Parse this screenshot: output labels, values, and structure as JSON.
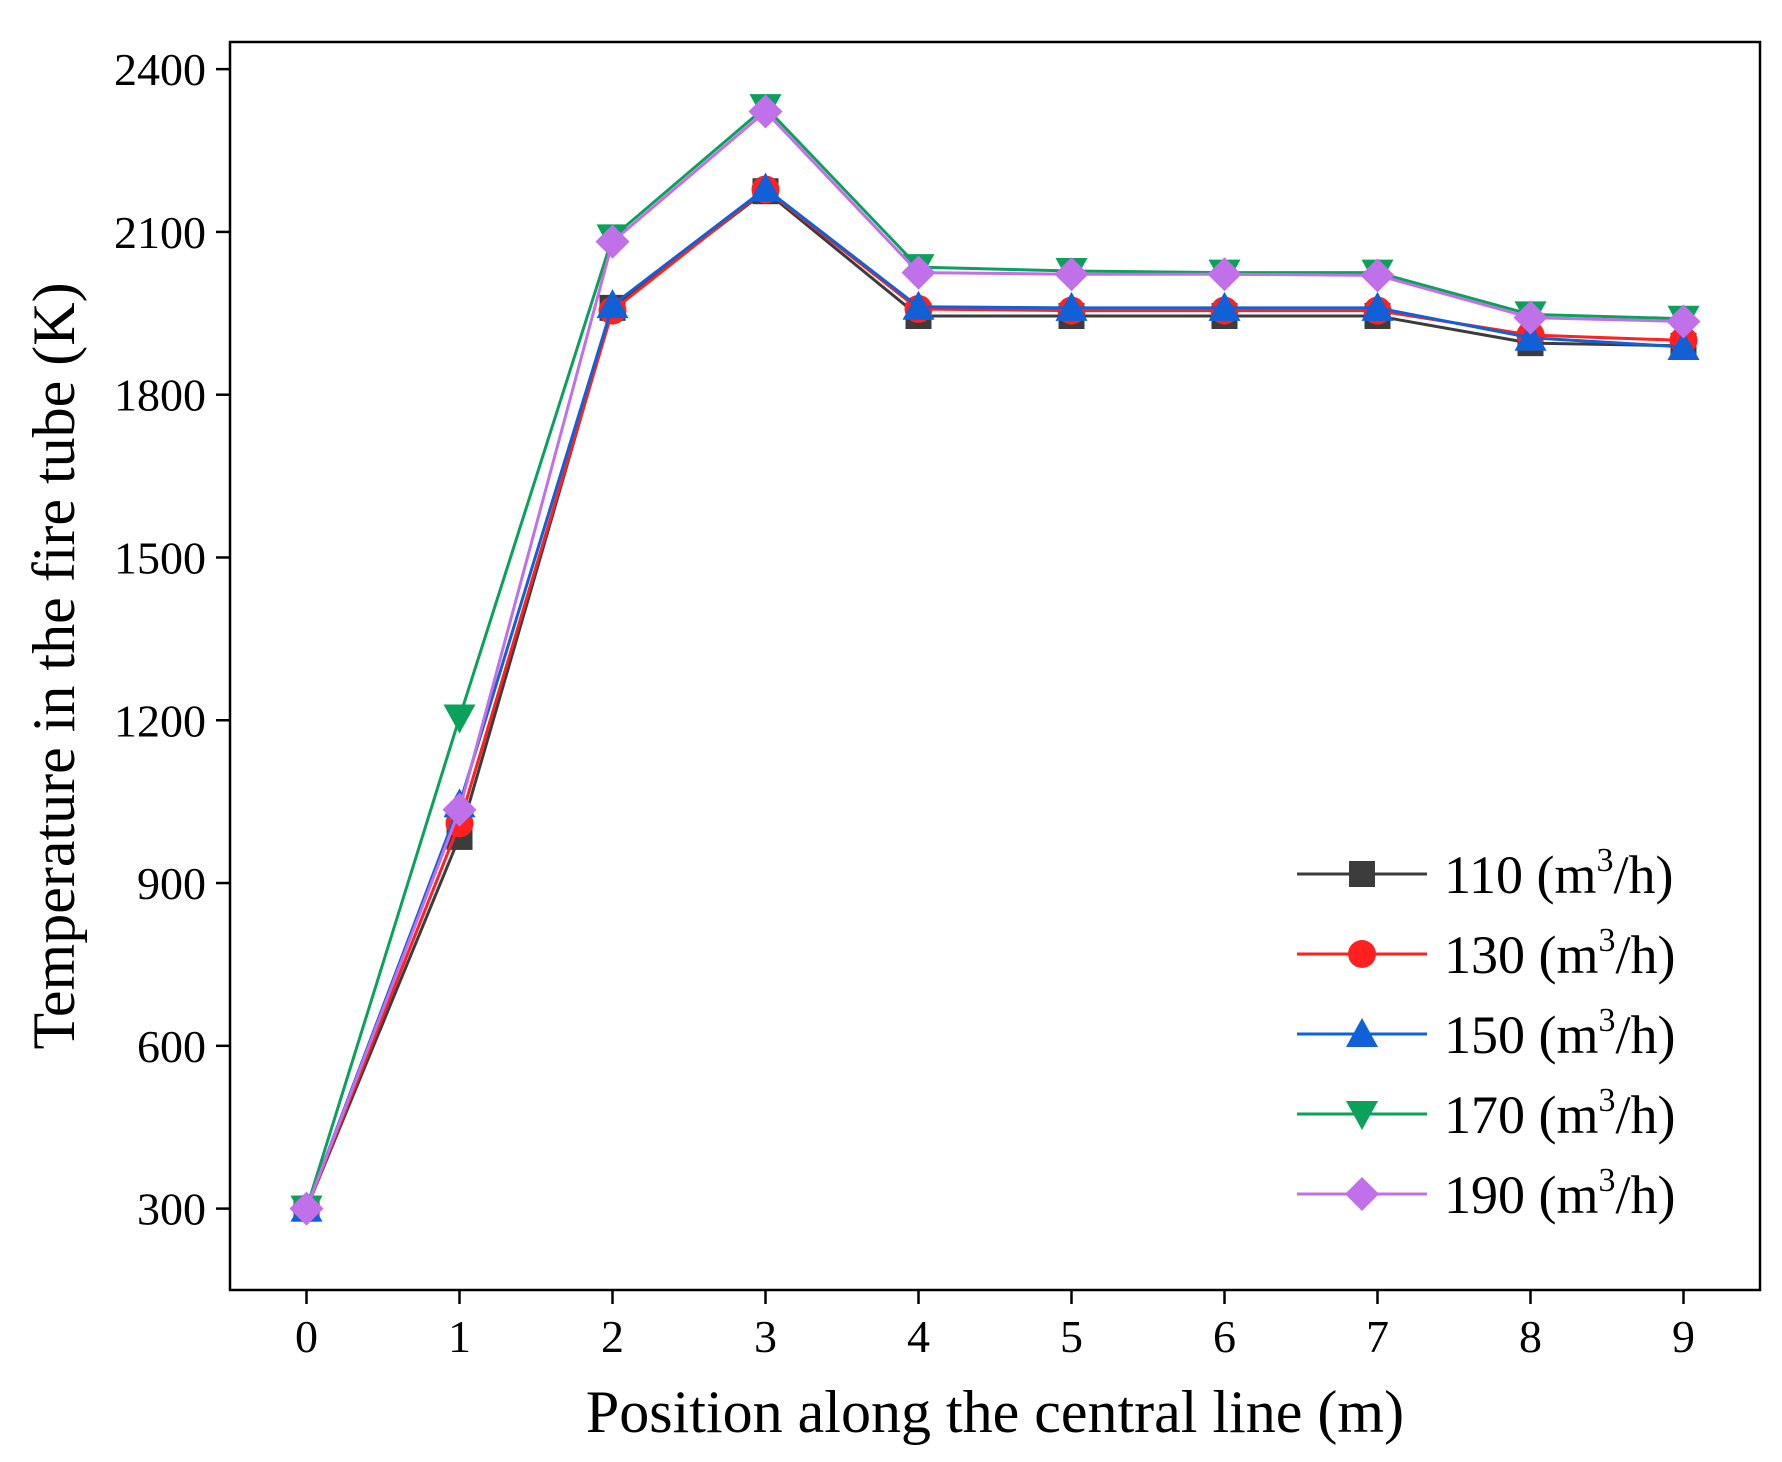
{
  "chart_data": {
    "type": "line",
    "title": "",
    "xlabel": "Position along the central line (m)",
    "ylabel": "Temperature in the fire tube (K)",
    "x": [
      0,
      1,
      2,
      3,
      4,
      5,
      6,
      7,
      8,
      9
    ],
    "xlim": [
      -0.5,
      9.5
    ],
    "ylim": [
      150,
      2450
    ],
    "xticks": [
      "0",
      "1",
      "2",
      "3",
      "4",
      "5",
      "6",
      "7",
      "8",
      "9"
    ],
    "yticks": [
      "300",
      "600",
      "900",
      "1200",
      "1500",
      "1800",
      "2100",
      "2400"
    ],
    "grid": false,
    "legend_position": "bottom-right",
    "legend_unit": "(m",
    "legend_unit_exp": "3",
    "legend_unit_end": "/h)",
    "series": [
      {
        "name": "110",
        "color": "#3c3c3c",
        "marker": "square",
        "values": [
          300,
          985,
          1960,
          2175,
          1945,
          1945,
          1945,
          1945,
          1895,
          1890
        ]
      },
      {
        "name": "130",
        "color": "#ff2020",
        "marker": "circle",
        "values": [
          300,
          1010,
          1955,
          2178,
          1958,
          1955,
          1955,
          1955,
          1910,
          1900
        ]
      },
      {
        "name": "150",
        "color": "#1060d8",
        "marker": "triangle-up",
        "values": [
          300,
          1045,
          1965,
          2180,
          1962,
          1960,
          1960,
          1960,
          1905,
          1888
        ]
      },
      {
        "name": "170",
        "color": "#0aa25a",
        "marker": "triangle-down",
        "values": [
          300,
          1205,
          2090,
          2330,
          2035,
          2028,
          2025,
          2025,
          1948,
          1940
        ]
      },
      {
        "name": "190",
        "color": "#c070e8",
        "marker": "diamond",
        "values": [
          300,
          1035,
          2082,
          2322,
          2025,
          2022,
          2022,
          2020,
          1942,
          1935
        ]
      }
    ]
  }
}
